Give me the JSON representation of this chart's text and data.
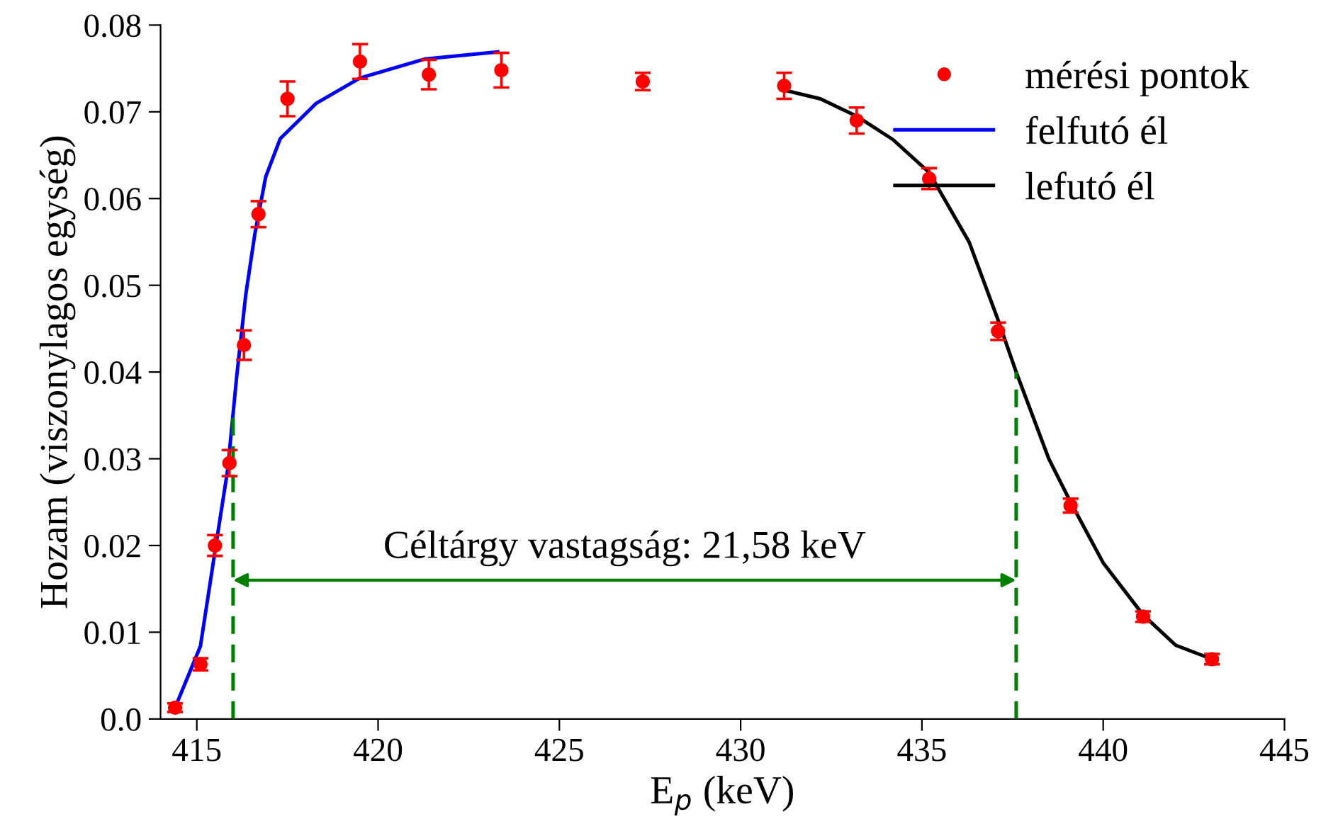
{
  "chart_data": {
    "type": "scatter",
    "xlabel": "E$_{p}$ (keV)",
    "ylabel": "Hozam (viszonylagos egység)",
    "xlim": [
      414,
      445
    ],
    "xticks": [
      415,
      420,
      425,
      430,
      435,
      440,
      445
    ],
    "ylim": [
      0,
      0.08
    ],
    "yticks": [
      {
        "value": 0,
        "label": "0.0"
      },
      0.01,
      0.02,
      0.03,
      0.04,
      0.05,
      0.06,
      0.07,
      0.08
    ],
    "legend": "top right",
    "grid": false,
    "series": [
      {
        "name": "mérési pontok",
        "color": "#ff0000",
        "marker": "circle",
        "x": [
          414.4,
          415.1,
          415.5,
          415.9,
          416.3,
          416.7,
          417.5,
          419.5,
          421.4,
          423.4,
          427.3,
          431.2,
          433.2,
          435.2,
          437.1,
          439.1,
          441.1,
          443.0
        ],
        "values": [
          0.0013,
          0.0063,
          0.02,
          0.0295,
          0.0431,
          0.0582,
          0.0715,
          0.0758,
          0.0743,
          0.0748,
          0.0735,
          0.073,
          0.069,
          0.0623,
          0.0447,
          0.0246,
          0.0118,
          0.0069
        ],
        "errors": [
          0.0005,
          0.0007,
          0.0012,
          0.0015,
          0.0017,
          0.0015,
          0.002,
          0.002,
          0.0017,
          0.002,
          0.001,
          0.0015,
          0.0015,
          0.0012,
          0.001,
          0.0008,
          0.0006,
          0.0006
        ]
      },
      {
        "name": "felfutó él",
        "type": "line",
        "color": "#0000ff",
        "x": [
          414.4,
          415.1,
          415.5,
          415.85,
          416.1,
          416.35,
          416.6,
          416.9,
          417.3,
          418.3,
          419.5,
          421.3,
          423.3
        ],
        "values": [
          0.0013,
          0.0084,
          0.0193,
          0.0287,
          0.0395,
          0.0489,
          0.0559,
          0.0625,
          0.0669,
          0.071,
          0.0739,
          0.0761,
          0.0769
        ]
      },
      {
        "name": "lefutó él",
        "type": "line",
        "color": "#000000",
        "x": [
          431.2,
          432.2,
          433.2,
          434.2,
          435.2,
          436.3,
          437.1,
          437.6,
          438.5,
          439.1,
          440.0,
          441.1,
          442.0,
          443.0
        ],
        "values": [
          0.0725,
          0.0715,
          0.0695,
          0.0668,
          0.063,
          0.055,
          0.046,
          0.04,
          0.03,
          0.025,
          0.018,
          0.012,
          0.0085,
          0.0069
        ]
      },
      {
        "type": "line",
        "color": "#008000",
        "line_style": "dashed",
        "x": [
          416.0,
          416.0
        ],
        "values": [
          0,
          0.035
        ]
      },
      {
        "type": "line",
        "color": "#008000",
        "line_style": "dashed",
        "x": [
          437.6,
          437.6
        ],
        "values": [
          0,
          0.04
        ]
      }
    ],
    "annotations": [
      "Céltárgy vastagság: 21,58 keV"
    ]
  }
}
